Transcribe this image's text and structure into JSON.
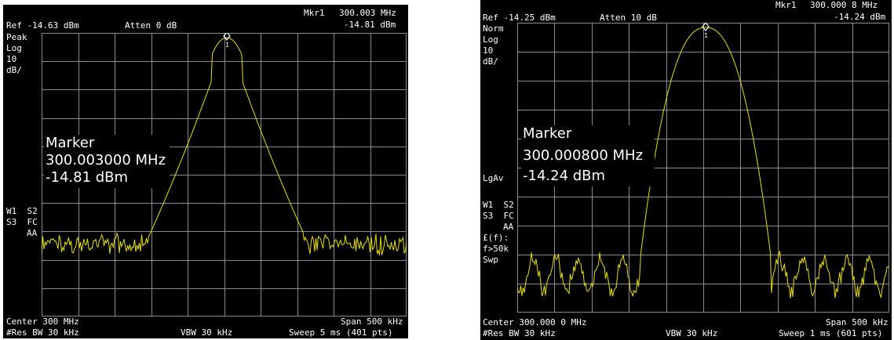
{
  "screens": [
    {
      "id": "left",
      "marker_readout": {
        "label": "Mkr1",
        "freq": "300.003 MHz",
        "amp": "-14.81 dBm"
      },
      "ref_level": "Ref -14.63 dBm",
      "attenuation": "Atten 0 dB",
      "detector": "Peak",
      "scale": [
        "Log",
        "10",
        "dB/"
      ],
      "marker_label": "1",
      "marker_box": {
        "title": "Marker",
        "freq": "300.003000 MHz",
        "amp": "-14.81 dBm"
      },
      "side_labels": [
        "W1  S2",
        "S3  FC",
        "AA"
      ],
      "center": "Center 300 MHz",
      "span": "Span 500 kHz",
      "res_bw": "#Res BW 30 kHz",
      "vbw": "VBW 30 kHz",
      "sweep": "Sweep 5 ms (401 pts)"
    },
    {
      "id": "right",
      "marker_readout": {
        "label": "Mkr1",
        "freq": "300.000 8 MHz",
        "amp": "-14.24 dBm"
      },
      "ref_level": "Ref -14.25 dBm",
      "attenuation": "Atten 10 dB",
      "detector": "Norm",
      "scale": [
        "Log",
        "10",
        "dB/"
      ],
      "marker_label": "1",
      "marker_box": {
        "title": "Marker",
        "freq": "300.000800 MHz",
        "amp": "-14.24 dBm"
      },
      "averaging": "LgAv",
      "side_labels": [
        "W1  S2",
        "S3  FC",
        "AA",
        "£(f):",
        "f>50k",
        "Swp"
      ],
      "center": "Center 300.000 0 MHz",
      "span": "Span 500 kHz",
      "res_bw": "#Res BW 30 kHz",
      "vbw": "VBW 30 kHz",
      "sweep": "Sweep 1 ms (601 pts)"
    }
  ],
  "colors": {
    "background": "#000000",
    "grid": "#8a8a8a",
    "trace": "#e8e000",
    "text": "#ffffff"
  }
}
